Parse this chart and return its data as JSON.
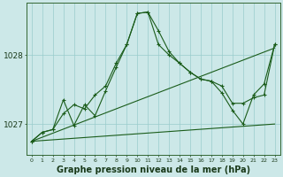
{
  "background_color": "#cce8e8",
  "grid_color": "#99cccc",
  "line_color": "#1a5c1a",
  "xlabel": "Graphe pression niveau de la mer (hPa)",
  "xlabel_fontsize": 7,
  "yticks": [
    1027,
    1028
  ],
  "ylim": [
    1026.55,
    1028.75
  ],
  "xlim": [
    -0.5,
    23.5
  ],
  "xtick_labels": [
    "0",
    "1",
    "2",
    "3",
    "4",
    "5",
    "6",
    "7",
    "8",
    "9",
    "10",
    "11",
    "12",
    "13",
    "14",
    "15",
    "16",
    "17",
    "18",
    "19",
    "20",
    "21",
    "22",
    "23"
  ],
  "series": [
    {
      "x": [
        0,
        23
      ],
      "y": [
        1026.75,
        1027.0
      ],
      "marker": false
    },
    {
      "x": [
        0,
        23
      ],
      "y": [
        1026.75,
        1028.1
      ],
      "marker": false
    },
    {
      "x": [
        0,
        1,
        2,
        3,
        4,
        5,
        6,
        7,
        8,
        9,
        10,
        11,
        12,
        13,
        14,
        15,
        16,
        17,
        18,
        19,
        20,
        21,
        22,
        23
      ],
      "y": [
        1026.75,
        1026.88,
        1026.92,
        1027.35,
        1026.98,
        1027.28,
        1027.12,
        1027.48,
        1027.82,
        1028.15,
        1028.6,
        1028.62,
        1028.35,
        1028.05,
        1027.88,
        1027.75,
        1027.65,
        1027.62,
        1027.55,
        1027.3,
        1027.3,
        1027.38,
        1027.42,
        1028.15
      ],
      "marker": true
    },
    {
      "x": [
        0,
        1,
        2,
        3,
        4,
        5,
        6,
        7,
        8,
        9,
        10,
        11,
        12,
        13,
        14,
        15,
        16,
        17,
        18,
        19,
        20,
        21,
        22,
        23
      ],
      "y": [
        1026.75,
        1026.88,
        1026.92,
        1027.15,
        1027.28,
        1027.22,
        1027.42,
        1027.55,
        1027.88,
        1028.15,
        1028.6,
        1028.62,
        1028.15,
        1028.0,
        1027.88,
        1027.75,
        1027.65,
        1027.62,
        1027.45,
        1027.2,
        1027.0,
        1027.42,
        1027.58,
        1028.15
      ],
      "marker": true
    }
  ]
}
